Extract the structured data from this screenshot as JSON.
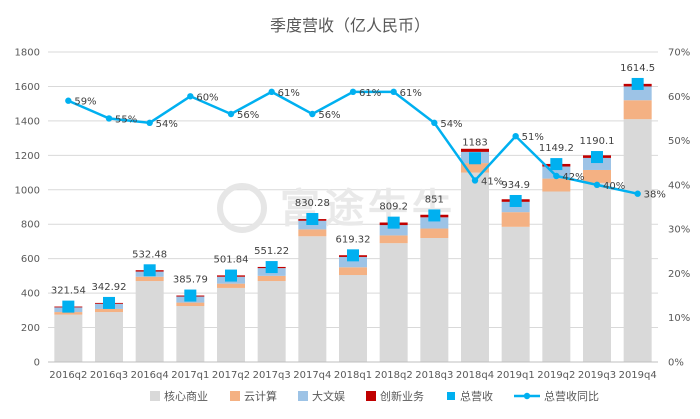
{
  "chart_data": {
    "type": "bar",
    "title": "季度营收（亿人民币）",
    "categories": [
      "2016q2",
      "2016q3",
      "2016q4",
      "2017q1",
      "2017q2",
      "2017q3",
      "2017q4",
      "2018q1",
      "2018q2",
      "2018q3",
      "2018q4",
      "2019q1",
      "2019q2",
      "2019q3",
      "2019q4"
    ],
    "series": [
      {
        "name": "核心商业",
        "kind": "stacked-bar",
        "color": "#d9d9d9",
        "axis": "left",
        "values": [
          275,
          290,
          470,
          325,
          430,
          470,
          730,
          505,
          690,
          720,
          1100,
          785,
          990,
          1040,
          1410
        ]
      },
      {
        "name": "云计算",
        "kind": "stacked-bar",
        "color": "#f4b183",
        "axis": "left",
        "values": [
          15,
          18,
          25,
          20,
          25,
          30,
          40,
          45,
          45,
          55,
          55,
          85,
          75,
          75,
          110
        ]
      },
      {
        "name": "大文娱",
        "kind": "stacked-bar",
        "color": "#9dc3e6",
        "axis": "left",
        "values": [
          27,
          30,
          30,
          35,
          40,
          45,
          50,
          60,
          60,
          65,
          65,
          60,
          70,
          70,
          80
        ]
      },
      {
        "name": "创新业务",
        "kind": "stacked-bar",
        "color": "#c00000",
        "axis": "left",
        "values": [
          5,
          5,
          8,
          6,
          8,
          7,
          10,
          10,
          15,
          15,
          18,
          15,
          15,
          15,
          15
        ]
      },
      {
        "name": "总营收",
        "kind": "marker",
        "color": "#00b0f0",
        "axis": "left",
        "values": [
          321.54,
          342.92,
          532.48,
          385.79,
          501.84,
          551.22,
          830.28,
          619.32,
          809.2,
          851,
          1183,
          934.9,
          1149.2,
          1190.1,
          1614.5
        ],
        "labels": [
          "321.54",
          "342.92",
          "532.48",
          "385.79",
          "501.84",
          "551.22",
          "830.28",
          "619.32",
          "809.2",
          "851",
          "1183",
          "934.9",
          "1149.2",
          "1190.1",
          "1614.5"
        ]
      },
      {
        "name": "总营收同比",
        "kind": "line",
        "color": "#00b0f0",
        "axis": "right",
        "values": [
          59,
          55,
          54,
          60,
          56,
          61,
          56,
          61,
          61,
          54,
          41,
          51,
          42,
          40,
          38
        ],
        "labels": [
          "59%",
          "55%",
          "54%",
          "60%",
          "56%",
          "61%",
          "56%",
          "61%",
          "61%",
          "54%",
          "41%",
          "51%",
          "42%",
          "40%",
          "38%"
        ]
      }
    ],
    "y_left": {
      "min": 0,
      "max": 1800,
      "ticks": [
        "0",
        "200",
        "400",
        "600",
        "800",
        "1000",
        "1200",
        "1400",
        "1600",
        "1800"
      ]
    },
    "y_right": {
      "min": 0,
      "max": 70,
      "ticks": [
        "0%",
        "10%",
        "20%",
        "30%",
        "40%",
        "50%",
        "60%",
        "70%"
      ]
    },
    "grid": true,
    "legend_position": "bottom"
  },
  "watermark": "富途牛牛",
  "colors": {
    "grid": "#d9d9d9",
    "axis": "#bfbfbf",
    "text": "#595959"
  }
}
